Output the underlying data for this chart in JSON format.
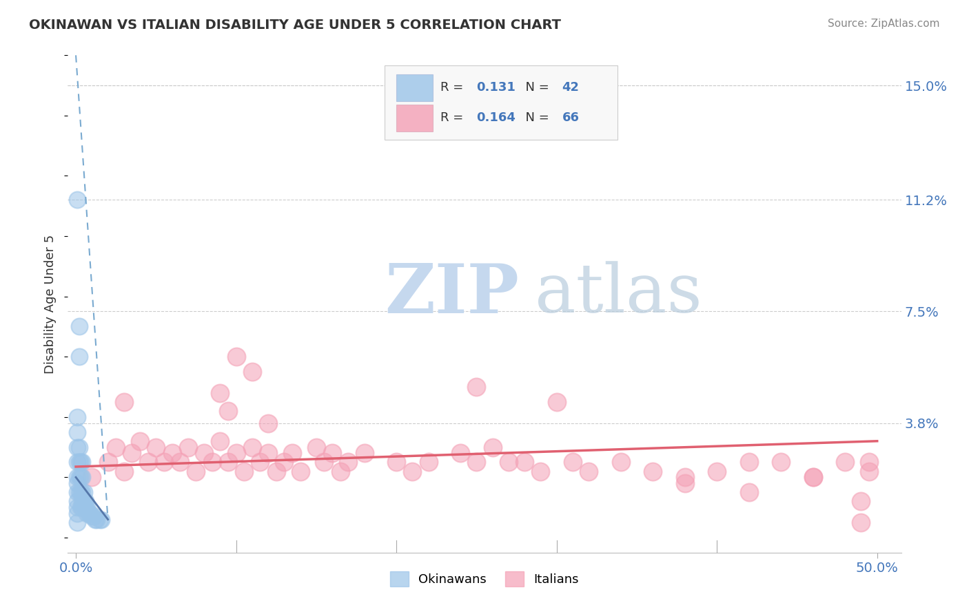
{
  "title": "OKINAWAN VS ITALIAN DISABILITY AGE UNDER 5 CORRELATION CHART",
  "source_text": "Source: ZipAtlas.com",
  "ylabel": "Disability Age Under 5",
  "xlim": [
    -0.005,
    0.515
  ],
  "ylim": [
    -0.005,
    0.16
  ],
  "ytick_vals": [
    0.038,
    0.075,
    0.112,
    0.15
  ],
  "ytick_labels": [
    "3.8%",
    "7.5%",
    "11.2%",
    "15.0%"
  ],
  "xtick_vals": [
    0.0,
    0.5
  ],
  "xtick_labels": [
    "0.0%",
    "50.0%"
  ],
  "okinawan_R": "0.131",
  "okinawan_N": "42",
  "italian_R": "0.164",
  "italian_N": "66",
  "okinawan_scatter_color": "#9bc4e8",
  "italian_scatter_color": "#f4a0b5",
  "okinawan_trend_color": "#7aaad0",
  "italian_trend_color": "#e06070",
  "background_color": "#ffffff",
  "grid_color": "#cccccc",
  "watermark_zip_color": "#dce8f5",
  "watermark_atlas_color": "#c8d8e8",
  "legend_label_okinawans": "Okinawans",
  "legend_label_italians": "Italians",
  "okinawan_scatter_x": [
    0.001,
    0.001,
    0.001,
    0.001,
    0.001,
    0.001,
    0.001,
    0.001,
    0.001,
    0.001,
    0.001,
    0.002,
    0.002,
    0.002,
    0.002,
    0.002,
    0.003,
    0.003,
    0.003,
    0.003,
    0.004,
    0.004,
    0.004,
    0.004,
    0.004,
    0.005,
    0.005,
    0.005,
    0.006,
    0.006,
    0.007,
    0.007,
    0.008,
    0.009,
    0.01,
    0.011,
    0.012,
    0.013,
    0.015,
    0.016,
    0.001,
    0.002
  ],
  "okinawan_scatter_y": [
    0.005,
    0.008,
    0.01,
    0.012,
    0.015,
    0.018,
    0.02,
    0.025,
    0.03,
    0.035,
    0.04,
    0.015,
    0.02,
    0.025,
    0.03,
    0.06,
    0.01,
    0.015,
    0.02,
    0.025,
    0.01,
    0.012,
    0.015,
    0.02,
    0.025,
    0.01,
    0.012,
    0.015,
    0.01,
    0.012,
    0.008,
    0.01,
    0.008,
    0.008,
    0.007,
    0.007,
    0.006,
    0.006,
    0.006,
    0.006,
    0.112,
    0.07
  ],
  "italian_scatter_x": [
    0.01,
    0.02,
    0.025,
    0.03,
    0.035,
    0.04,
    0.045,
    0.05,
    0.055,
    0.06,
    0.065,
    0.07,
    0.075,
    0.08,
    0.085,
    0.09,
    0.095,
    0.1,
    0.105,
    0.11,
    0.115,
    0.12,
    0.125,
    0.13,
    0.135,
    0.14,
    0.15,
    0.155,
    0.16,
    0.165,
    0.17,
    0.18,
    0.2,
    0.21,
    0.22,
    0.24,
    0.25,
    0.26,
    0.27,
    0.28,
    0.29,
    0.31,
    0.32,
    0.34,
    0.36,
    0.38,
    0.4,
    0.42,
    0.44,
    0.46,
    0.48,
    0.49,
    0.495,
    0.03,
    0.09,
    0.095,
    0.1,
    0.11,
    0.12,
    0.25,
    0.3,
    0.38,
    0.42,
    0.46,
    0.49,
    0.495
  ],
  "italian_scatter_y": [
    0.02,
    0.025,
    0.03,
    0.022,
    0.028,
    0.032,
    0.025,
    0.03,
    0.025,
    0.028,
    0.025,
    0.03,
    0.022,
    0.028,
    0.025,
    0.032,
    0.025,
    0.028,
    0.022,
    0.03,
    0.025,
    0.028,
    0.022,
    0.025,
    0.028,
    0.022,
    0.03,
    0.025,
    0.028,
    0.022,
    0.025,
    0.028,
    0.025,
    0.022,
    0.025,
    0.028,
    0.025,
    0.03,
    0.025,
    0.025,
    0.022,
    0.025,
    0.022,
    0.025,
    0.022,
    0.018,
    0.022,
    0.025,
    0.025,
    0.02,
    0.025,
    0.012,
    0.022,
    0.045,
    0.048,
    0.042,
    0.06,
    0.055,
    0.038,
    0.05,
    0.045,
    0.02,
    0.015,
    0.02,
    0.005,
    0.025
  ]
}
